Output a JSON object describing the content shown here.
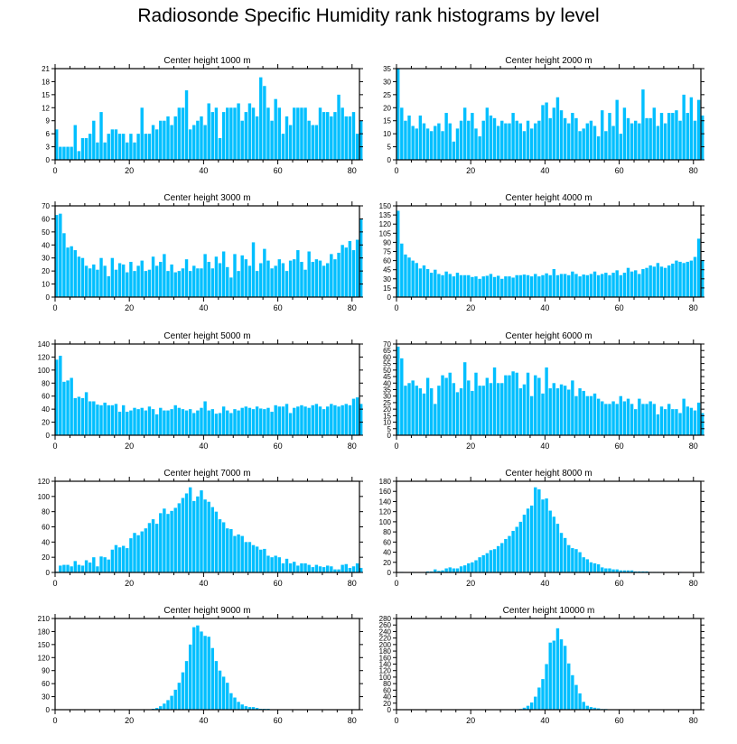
{
  "title": "Radiosonde Specific Humidity rank histograms by level",
  "bar_color": "#00BFFF",
  "chart_data": [
    {
      "type": "bar",
      "title": "Center height 1000 m",
      "xlim": [
        0,
        82
      ],
      "ylim": [
        0,
        21
      ],
      "xticks": [
        0,
        20,
        40,
        60,
        80
      ],
      "yticks": [
        0,
        3,
        6,
        9,
        12,
        15,
        18,
        21
      ],
      "values": [
        7,
        3,
        3,
        3,
        3,
        8,
        2,
        5,
        5,
        6,
        9,
        4,
        11,
        4,
        6,
        7,
        7,
        6,
        6,
        4,
        6,
        4,
        6,
        12,
        6,
        6,
        8,
        7,
        9,
        9,
        10,
        8,
        10,
        12,
        12,
        16,
        7,
        8,
        9,
        10,
        8,
        13,
        11,
        12,
        5,
        11,
        12,
        12,
        12,
        13,
        9,
        11,
        13,
        12,
        10,
        19,
        17,
        12,
        9,
        14,
        12,
        6,
        10,
        8,
        12,
        12,
        12,
        12,
        9,
        8,
        8,
        12,
        11,
        11,
        10,
        11,
        15,
        12,
        10,
        10,
        11,
        6,
        9
      ]
    },
    {
      "type": "bar",
      "title": "Center height 2000 m",
      "xlim": [
        0,
        82
      ],
      "ylim": [
        0,
        35
      ],
      "xticks": [
        0,
        20,
        40,
        60,
        80
      ],
      "yticks": [
        0,
        5,
        10,
        15,
        20,
        25,
        30,
        35
      ],
      "values": [
        35,
        20,
        15,
        17,
        13,
        12,
        17,
        14,
        12,
        11,
        13,
        14,
        11,
        18,
        14,
        7,
        12,
        15,
        20,
        15,
        18,
        12,
        9,
        15,
        20,
        17,
        16,
        13,
        15,
        14,
        14,
        18,
        15,
        14,
        11,
        15,
        12,
        14,
        15,
        21,
        22,
        16,
        20,
        24,
        19,
        16,
        14,
        18,
        16,
        11,
        12,
        14,
        15,
        13,
        9,
        19,
        11,
        18,
        13,
        23,
        10,
        20,
        16,
        14,
        15,
        14,
        27,
        16,
        16,
        20,
        13,
        18,
        14,
        18,
        18,
        19,
        15,
        25,
        18,
        24,
        15,
        23,
        17
      ]
    },
    {
      "type": "bar",
      "title": "Center height 3000 m",
      "xlim": [
        0,
        82
      ],
      "ylim": [
        0,
        70
      ],
      "xticks": [
        0,
        20,
        40,
        60,
        80
      ],
      "yticks": [
        0,
        10,
        20,
        30,
        40,
        50,
        60,
        70
      ],
      "values": [
        63,
        64,
        49,
        38,
        39,
        36,
        31,
        30,
        24,
        22,
        25,
        21,
        30,
        24,
        16,
        30,
        21,
        26,
        25,
        19,
        27,
        20,
        24,
        28,
        20,
        21,
        31,
        24,
        27,
        33,
        20,
        25,
        19,
        20,
        22,
        29,
        20,
        24,
        22,
        22,
        33,
        27,
        22,
        31,
        26,
        35,
        23,
        15,
        33,
        20,
        32,
        29,
        24,
        42,
        20,
        26,
        37,
        28,
        22,
        24,
        29,
        26,
        20,
        28,
        29,
        36,
        27,
        21,
        35,
        27,
        29,
        28,
        24,
        26,
        33,
        29,
        34,
        40,
        38,
        43,
        36,
        44,
        60
      ]
    },
    {
      "type": "bar",
      "title": "Center height 4000 m",
      "xlim": [
        0,
        82
      ],
      "ylim": [
        0,
        150
      ],
      "xticks": [
        0,
        20,
        40,
        60,
        80
      ],
      "yticks": [
        0,
        15,
        30,
        45,
        60,
        75,
        90,
        105,
        120,
        135,
        150
      ],
      "values": [
        142,
        88,
        70,
        65,
        60,
        56,
        47,
        52,
        46,
        40,
        45,
        38,
        36,
        42,
        38,
        34,
        40,
        36,
        36,
        36,
        33,
        34,
        30,
        34,
        35,
        38,
        33,
        35,
        30,
        34,
        34,
        32,
        36,
        36,
        37,
        36,
        34,
        38,
        34,
        36,
        39,
        36,
        46,
        36,
        38,
        38,
        36,
        42,
        38,
        34,
        37,
        36,
        38,
        42,
        36,
        38,
        40,
        36,
        40,
        44,
        36,
        40,
        48,
        42,
        44,
        38,
        46,
        48,
        52,
        50,
        56,
        50,
        48,
        52,
        55,
        60,
        58,
        56,
        58,
        60,
        66,
        96,
        61
      ]
    },
    {
      "type": "bar",
      "title": "Center height 5000 m",
      "xlim": [
        0,
        82
      ],
      "ylim": [
        0,
        140
      ],
      "xticks": [
        0,
        20,
        40,
        60,
        80
      ],
      "yticks": [
        0,
        20,
        40,
        60,
        80,
        100,
        120,
        140
      ],
      "values": [
        116,
        122,
        82,
        84,
        88,
        57,
        59,
        57,
        66,
        52,
        52,
        47,
        46,
        50,
        46,
        46,
        48,
        36,
        46,
        36,
        38,
        42,
        40,
        42,
        38,
        44,
        40,
        32,
        42,
        38,
        38,
        40,
        46,
        42,
        40,
        38,
        40,
        34,
        38,
        42,
        52,
        38,
        40,
        33,
        34,
        44,
        38,
        34,
        40,
        38,
        42,
        44,
        42,
        40,
        44,
        41,
        40,
        42,
        36,
        46,
        44,
        44,
        48,
        34,
        42,
        44,
        46,
        44,
        42,
        46,
        48,
        44,
        40,
        44,
        48,
        46,
        44,
        46,
        48,
        46,
        56,
        58,
        48
      ]
    },
    {
      "type": "bar",
      "title": "Center height 6000 m",
      "xlim": [
        0,
        82
      ],
      "ylim": [
        0,
        70
      ],
      "xticks": [
        0,
        20,
        40,
        60,
        80
      ],
      "yticks": [
        0,
        5,
        10,
        15,
        20,
        25,
        30,
        35,
        40,
        45,
        50,
        55,
        60,
        65,
        70
      ],
      "values": [
        68,
        59,
        38,
        40,
        42,
        38,
        36,
        32,
        44,
        36,
        24,
        38,
        46,
        44,
        48,
        40,
        33,
        36,
        56,
        42,
        34,
        48,
        38,
        38,
        44,
        40,
        52,
        40,
        40,
        46,
        46,
        49,
        48,
        36,
        39,
        48,
        30,
        46,
        44,
        32,
        52,
        36,
        40,
        36,
        39,
        38,
        35,
        42,
        30,
        36,
        34,
        30,
        30,
        32,
        28,
        26,
        24,
        24,
        26,
        24,
        30,
        26,
        28,
        24,
        20,
        28,
        24,
        24,
        26,
        24,
        16,
        22,
        20,
        24,
        20,
        20,
        17,
        28,
        22,
        21,
        19,
        25,
        17
      ]
    },
    {
      "type": "bar",
      "title": "Center height 7000 m",
      "xlim": [
        0,
        82
      ],
      "ylim": [
        0,
        120
      ],
      "xticks": [
        0,
        20,
        40,
        60,
        80
      ],
      "yticks": [
        0,
        20,
        40,
        60,
        80,
        100,
        120
      ],
      "values": [
        1,
        9,
        10,
        10,
        8,
        15,
        10,
        9,
        16,
        13,
        20,
        8,
        21,
        20,
        17,
        30,
        36,
        33,
        35,
        32,
        45,
        52,
        49,
        54,
        58,
        65,
        70,
        64,
        78,
        84,
        77,
        81,
        85,
        91,
        98,
        104,
        112,
        94,
        100,
        108,
        96,
        93,
        86,
        80,
        70,
        66,
        58,
        57,
        48,
        50,
        48,
        40,
        40,
        36,
        34,
        30,
        31,
        22,
        20,
        22,
        20,
        12,
        18,
        12,
        14,
        9,
        12,
        12,
        10,
        7,
        10,
        8,
        7,
        9,
        8,
        4,
        4,
        10,
        11,
        6,
        8,
        12,
        6
      ]
    },
    {
      "type": "bar",
      "title": "Center height 8000 m",
      "xlim": [
        0,
        82
      ],
      "ylim": [
        0,
        180
      ],
      "xticks": [
        0,
        20,
        40,
        60,
        80
      ],
      "yticks": [
        0,
        20,
        40,
        60,
        80,
        100,
        120,
        140,
        160,
        180
      ],
      "values": [
        0,
        1,
        0,
        0,
        1,
        0,
        0,
        0,
        2,
        2,
        6,
        3,
        4,
        8,
        10,
        8,
        8,
        12,
        14,
        18,
        20,
        24,
        30,
        34,
        38,
        44,
        46,
        52,
        58,
        66,
        72,
        82,
        90,
        100,
        114,
        126,
        132,
        168,
        164,
        144,
        146,
        122,
        110,
        96,
        78,
        68,
        54,
        48,
        46,
        40,
        30,
        26,
        20,
        18,
        16,
        10,
        8,
        8,
        6,
        6,
        4,
        4,
        4,
        4,
        2,
        2,
        2,
        2,
        1,
        1,
        1,
        1,
        0,
        0,
        0,
        0,
        1,
        0,
        0,
        0,
        0,
        0,
        0
      ]
    },
    {
      "type": "bar",
      "title": "Center height 9000 m",
      "xlim": [
        0,
        82
      ],
      "ylim": [
        0,
        210
      ],
      "xticks": [
        0,
        20,
        40,
        60,
        80
      ],
      "yticks": [
        0,
        30,
        60,
        90,
        120,
        150,
        180,
        210
      ],
      "values": [
        0,
        0,
        0,
        0,
        0,
        0,
        0,
        0,
        0,
        0,
        0,
        0,
        0,
        0,
        0,
        0,
        0,
        0,
        0,
        0,
        0,
        0,
        0,
        0,
        0,
        0,
        2,
        4,
        8,
        14,
        22,
        32,
        46,
        62,
        86,
        112,
        150,
        190,
        194,
        180,
        170,
        168,
        142,
        112,
        90,
        76,
        62,
        38,
        28,
        18,
        12,
        8,
        6,
        6,
        4,
        2,
        2,
        2,
        1,
        0,
        0,
        0,
        0,
        0,
        0,
        0,
        0,
        0,
        0,
        0,
        0,
        0,
        0,
        0,
        0,
        0,
        0,
        0,
        0,
        0,
        0,
        0,
        0
      ]
    },
    {
      "type": "bar",
      "title": "Center height 10000 m",
      "xlim": [
        0,
        82
      ],
      "ylim": [
        0,
        280
      ],
      "xticks": [
        0,
        20,
        40,
        60,
        80
      ],
      "yticks": [
        0,
        20,
        40,
        60,
        80,
        100,
        120,
        140,
        160,
        180,
        200,
        220,
        240,
        260,
        280
      ],
      "values": [
        0,
        0,
        0,
        0,
        0,
        0,
        0,
        0,
        0,
        0,
        0,
        0,
        0,
        0,
        0,
        0,
        0,
        0,
        0,
        0,
        0,
        0,
        0,
        0,
        0,
        0,
        0,
        0,
        0,
        0,
        0,
        0,
        0,
        2,
        6,
        12,
        22,
        40,
        68,
        94,
        140,
        206,
        212,
        250,
        216,
        196,
        142,
        106,
        76,
        50,
        24,
        12,
        8,
        6,
        4,
        2,
        2,
        1,
        0,
        0,
        0,
        0,
        0,
        0,
        0,
        0,
        0,
        0,
        0,
        0,
        0,
        0,
        0,
        0,
        0,
        0,
        0,
        0,
        0,
        0,
        0,
        0,
        0
      ]
    }
  ]
}
